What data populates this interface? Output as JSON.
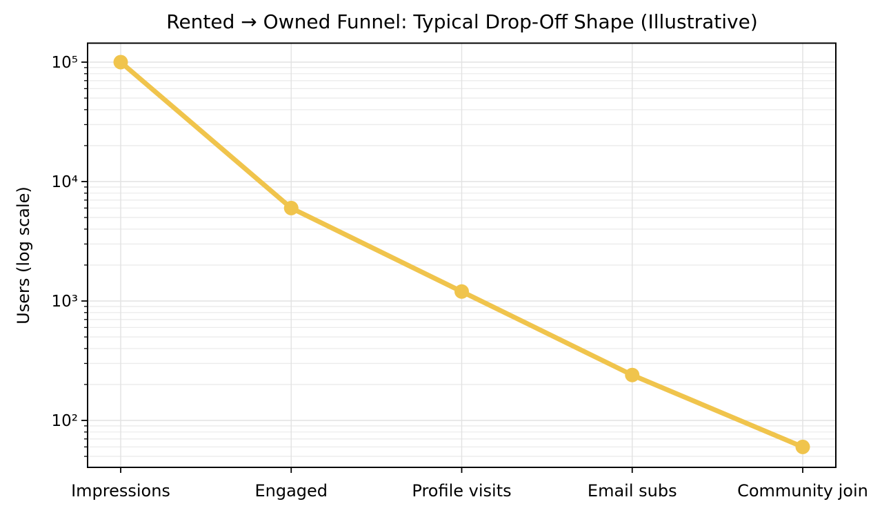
{
  "chart_data": {
    "type": "line",
    "title": "Rented → Owned Funnel: Typical Drop-Off Shape (Illustrative)",
    "xlabel": "",
    "ylabel": "Users (log scale)",
    "yscale": "log",
    "categories": [
      "Impressions",
      "Engaged",
      "Profile visits",
      "Email subs",
      "Community join"
    ],
    "series": [
      {
        "name": "Users",
        "values": [
          100000,
          6000,
          1200,
          240,
          60
        ]
      }
    ],
    "ylim": [
      41,
      145000
    ],
    "ytick_values": [
      100,
      1000,
      10000,
      100000
    ],
    "ytick_labels": [
      "10²",
      "10³",
      "10⁴",
      "10⁵"
    ],
    "grid": "both",
    "legend_position": "none",
    "colors": {
      "line": "#F0C44C",
      "marker": "#F0C44C",
      "grid_major": "#e2e2e2",
      "grid_minor": "#ebebeb",
      "spine": "#000000",
      "text": "#000000"
    },
    "marker": "circle"
  }
}
